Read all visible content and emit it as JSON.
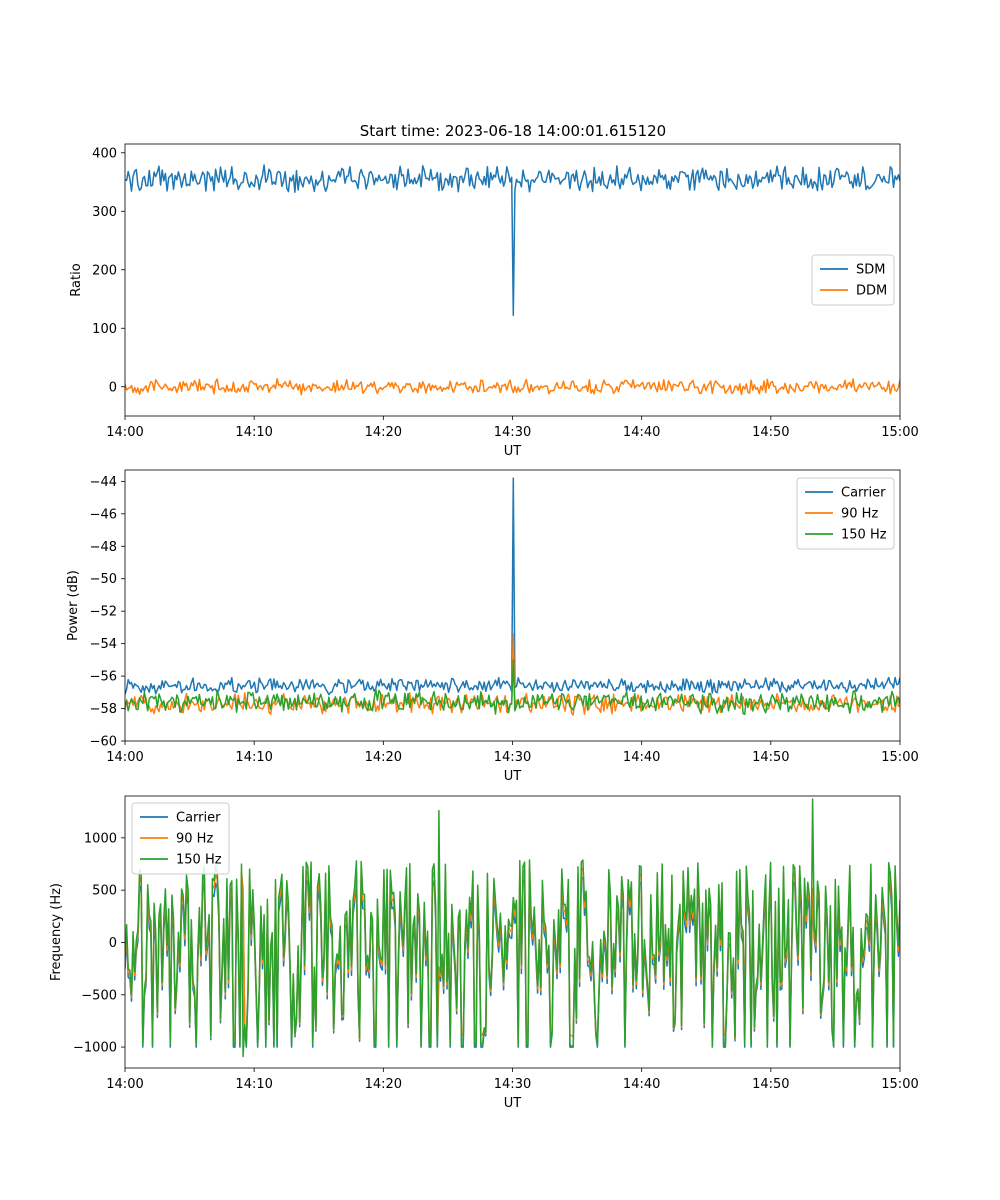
{
  "figure": {
    "title": "Start time: 2023-06-18 14:00:01.615120"
  },
  "chart_data": [
    {
      "type": "line",
      "title": "Start time: 2023-06-18 14:00:01.615120",
      "xlabel": "UT",
      "ylabel": "Ratio",
      "x_range": [
        "14:00",
        "15:00"
      ],
      "x_ticks": [
        "14:00",
        "14:10",
        "14:20",
        "14:30",
        "14:40",
        "14:50",
        "15:00"
      ],
      "ylim": [
        -50,
        415
      ],
      "y_ticks": [
        0,
        100,
        200,
        300,
        400
      ],
      "y_tick_labels": [
        "0",
        "100",
        "200",
        "300",
        "400"
      ],
      "legend_position": "center-right",
      "series": [
        {
          "name": "SDM",
          "color": "#1f77b4",
          "baseline": 355,
          "noise": 16,
          "spike": 122
        },
        {
          "name": "DDM",
          "color": "#ff7f0e",
          "baseline": 0,
          "noise": 9
        }
      ]
    },
    {
      "type": "line",
      "xlabel": "UT",
      "ylabel": "Power (dB)",
      "x_range": [
        "14:00",
        "15:00"
      ],
      "x_ticks": [
        "14:00",
        "14:10",
        "14:20",
        "14:30",
        "14:40",
        "14:50",
        "15:00"
      ],
      "ylim": [
        -60,
        -43.3
      ],
      "y_ticks": [
        -60,
        -58,
        -56,
        -54,
        -52,
        -50,
        -48,
        -46,
        -44
      ],
      "y_tick_labels": [
        "−60",
        "−58",
        "−56",
        "−54",
        "−52",
        "−50",
        "−48",
        "−46",
        "−44"
      ],
      "legend_position": "upper-right",
      "series": [
        {
          "name": "Carrier",
          "color": "#1f77b4",
          "baseline": -56.6,
          "noise": 0.35,
          "spike": -43.8
        },
        {
          "name": "90 Hz",
          "color": "#ff7f0e",
          "baseline": -57.7,
          "noise": 0.45,
          "spike": -53.4
        },
        {
          "name": "150 Hz",
          "color": "#2ca02c",
          "baseline": -57.6,
          "noise": 0.5,
          "spike": -55.0
        }
      ]
    },
    {
      "type": "line",
      "xlabel": "UT",
      "ylabel": "Frequency (Hz)",
      "x_range": [
        "14:00",
        "15:00"
      ],
      "x_ticks": [
        "14:00",
        "14:10",
        "14:20",
        "14:30",
        "14:40",
        "14:50",
        "15:00"
      ],
      "ylim": [
        -1200,
        1400
      ],
      "y_ticks": [
        -1000,
        -500,
        0,
        500,
        1000
      ],
      "y_tick_labels": [
        "−1000",
        "−500",
        "0",
        "500",
        "1000"
      ],
      "legend_position": "upper-left",
      "series": [
        {
          "name": "Carrier",
          "color": "#1f77b4",
          "min": -1000,
          "max": 1000
        },
        {
          "name": "90 Hz",
          "color": "#ff7f0e",
          "min": -900,
          "max": 1200
        },
        {
          "name": "150 Hz",
          "color": "#2ca02c",
          "min": -1100,
          "max": 1370
        }
      ]
    }
  ]
}
